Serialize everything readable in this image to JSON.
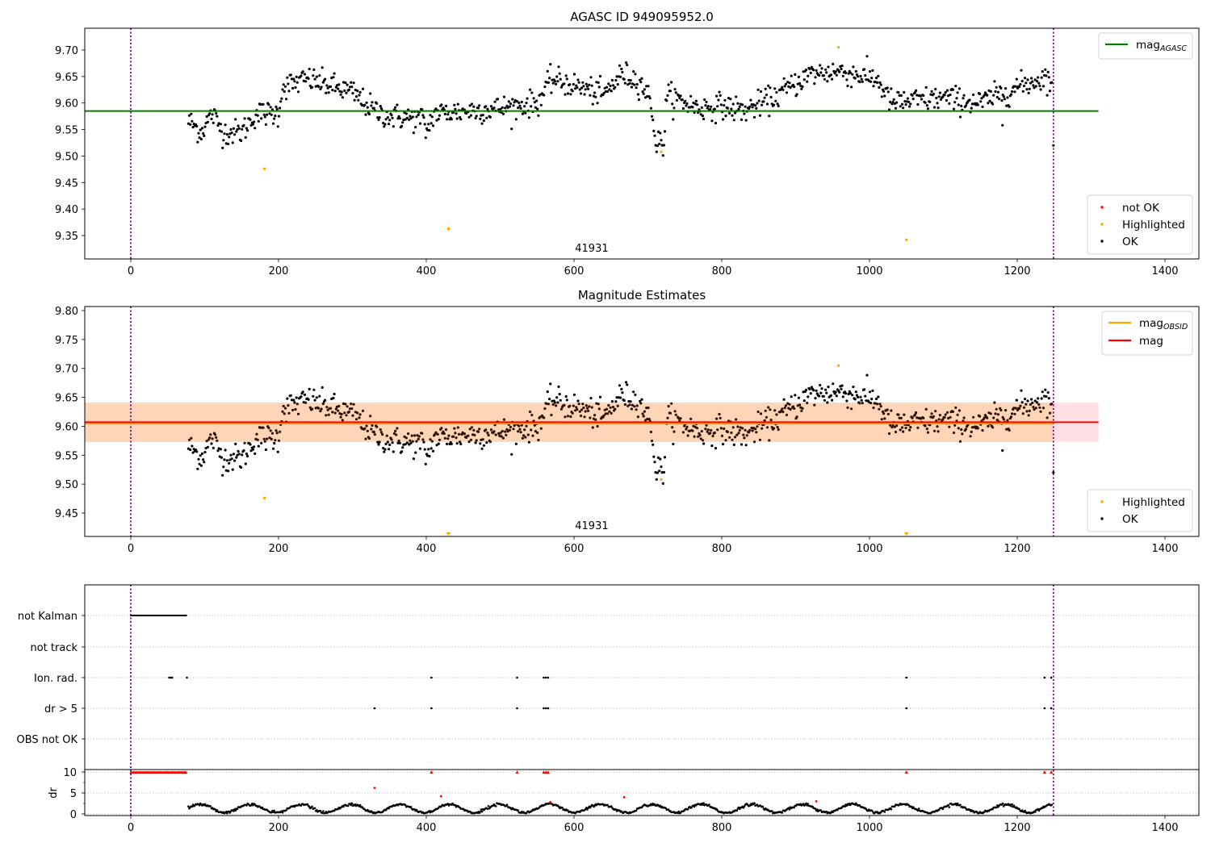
{
  "colors": {
    "ok": "#000000",
    "not_ok": "#ff0000",
    "highlighted": "#ffa500",
    "mag_agasc": "#008000",
    "mag": "#ff0000",
    "mag_obsid": "#ffa500",
    "band_obsid": "#ffd5b8",
    "band_mag": "#ffdfe4",
    "obs_bounds": "#800080",
    "grid": "#b0b0b0"
  },
  "chart_data": [
    {
      "type": "scatter",
      "title": "AGASC ID 949095952.0",
      "xlim": [
        -62,
        1447
      ],
      "ylim": [
        9.308,
        9.741
      ],
      "xticks": [
        "0",
        "200",
        "400",
        "600",
        "800",
        "1000",
        "1200",
        "1400"
      ],
      "yticks": [
        "9.35",
        "9.40",
        "9.45",
        "9.50",
        "9.55",
        "9.60",
        "9.65",
        "9.70"
      ],
      "obs_bounds_x": [
        0,
        1249
      ],
      "obsid_label": "41931",
      "mag_agasc": 9.585,
      "mag_agasc_xrange": [
        -62,
        1310
      ],
      "legend_lines": [
        {
          "label": "mag",
          "sub": "AGASC",
          "color_key": "mag_agasc"
        }
      ],
      "legend_points": [
        {
          "label": "not OK",
          "color_key": "not_ok"
        },
        {
          "label": "Highlighted",
          "color_key": "highlighted"
        },
        {
          "label": "OK",
          "color_key": "ok"
        }
      ],
      "highlighted_points": [
        [
          181,
          9.476
        ],
        [
          430,
          9.363
        ],
        [
          718,
          9.508
        ],
        [
          958,
          9.705
        ],
        [
          1050,
          9.342
        ]
      ],
      "trend_anchors": [
        [
          80,
          9.565
        ],
        [
          95,
          9.545
        ],
        [
          110,
          9.58
        ],
        [
          125,
          9.545
        ],
        [
          150,
          9.545
        ],
        [
          170,
          9.58
        ],
        [
          200,
          9.58
        ],
        [
          205,
          9.63
        ],
        [
          240,
          9.645
        ],
        [
          300,
          9.62
        ],
        [
          330,
          9.585
        ],
        [
          350,
          9.575
        ],
        [
          395,
          9.57
        ],
        [
          400,
          9.545
        ],
        [
          410,
          9.58
        ],
        [
          500,
          9.59
        ],
        [
          550,
          9.6
        ],
        [
          570,
          9.645
        ],
        [
          620,
          9.625
        ],
        [
          640,
          9.615
        ],
        [
          665,
          9.655
        ],
        [
          690,
          9.64
        ],
        [
          705,
          9.6
        ],
        [
          710,
          9.525
        ],
        [
          722,
          9.525
        ],
        [
          725,
          9.615
        ],
        [
          770,
          9.59
        ],
        [
          800,
          9.595
        ],
        [
          830,
          9.585
        ],
        [
          870,
          9.61
        ],
        [
          920,
          9.655
        ],
        [
          960,
          9.66
        ],
        [
          1010,
          9.645
        ],
        [
          1030,
          9.6
        ],
        [
          1100,
          9.61
        ],
        [
          1150,
          9.6
        ],
        [
          1200,
          9.63
        ],
        [
          1240,
          9.65
        ],
        [
          1249,
          9.63
        ]
      ],
      "isolated_ok_points": [
        [
          1180,
          9.558
        ],
        [
          1249,
          9.52
        ]
      ]
    },
    {
      "type": "scatter",
      "title": "Magnitude Estimates",
      "xlim": [
        -62,
        1447
      ],
      "ylim": [
        9.408,
        9.805
      ],
      "xticks": [
        "0",
        "200",
        "400",
        "600",
        "800",
        "1000",
        "1200",
        "1400"
      ],
      "yticks": [
        "9.45",
        "9.50",
        "9.55",
        "9.60",
        "9.65",
        "9.70",
        "9.75",
        "9.80"
      ],
      "obs_bounds_x": [
        0,
        1249
      ],
      "obsid_label": "41931",
      "mag": 9.607,
      "mag_obsid": 9.606,
      "mag_band": [
        9.573,
        9.641
      ],
      "obsid_band_xrange": [
        -62,
        1249
      ],
      "mag_band_xrange": [
        -62,
        1310
      ],
      "legend_lines": [
        {
          "label": "mag",
          "sub": "OBSID",
          "color_key": "mag_obsid"
        },
        {
          "label": "mag",
          "sub": "",
          "color_key": "mag"
        }
      ],
      "legend_points": [
        {
          "label": "Highlighted",
          "color_key": "highlighted"
        },
        {
          "label": "OK",
          "color_key": "ok"
        }
      ],
      "highlighted_points": [
        [
          181,
          9.476
        ],
        [
          718,
          9.508
        ],
        [
          958,
          9.705
        ]
      ],
      "offscale_highlighted_x": [
        430,
        1050
      ]
    },
    {
      "type": "scatter",
      "title": "",
      "xlim": [
        -62,
        1447
      ],
      "xticks": [
        "0",
        "200",
        "400",
        "600",
        "800",
        "1000",
        "1200",
        "1400"
      ],
      "obs_bounds_x": [
        0,
        1249
      ],
      "flag_rows": [
        "not Kalman",
        "not track",
        "Ion. rad.",
        "dr > 5",
        "OBS not OK"
      ],
      "flag_points": {
        "not Kalman": {
          "range": [
            0,
            76
          ]
        },
        "not track": {
          "points": []
        },
        "Ion. rad.": {
          "points": [
            52,
            54,
            56,
            76,
            407,
            523,
            559,
            562,
            565,
            1050,
            1237,
            1246
          ]
        },
        "dr > 5": {
          "points": [
            330,
            407,
            523,
            559,
            562,
            565,
            1050,
            1237,
            1246
          ]
        },
        "OBS not OK": {
          "points": []
        }
      },
      "dr_ylabel": "dr",
      "dr_ylim": [
        -0.6,
        10.6
      ],
      "dr_yticks": [
        "0",
        "5",
        "10"
      ],
      "dr_not_ok_clipped_x_range": [
        0,
        76
      ],
      "dr_not_ok_points": [
        [
          330,
          6.2
        ],
        [
          407,
          10
        ],
        [
          420,
          4.2
        ],
        [
          523,
          10
        ],
        [
          559,
          10
        ],
        [
          562,
          10
        ],
        [
          565,
          10
        ],
        [
          568,
          2.8
        ],
        [
          668,
          4.0
        ],
        [
          928,
          3.0
        ],
        [
          1050,
          10
        ],
        [
          1237,
          10
        ],
        [
          1246,
          10
        ]
      ]
    }
  ]
}
